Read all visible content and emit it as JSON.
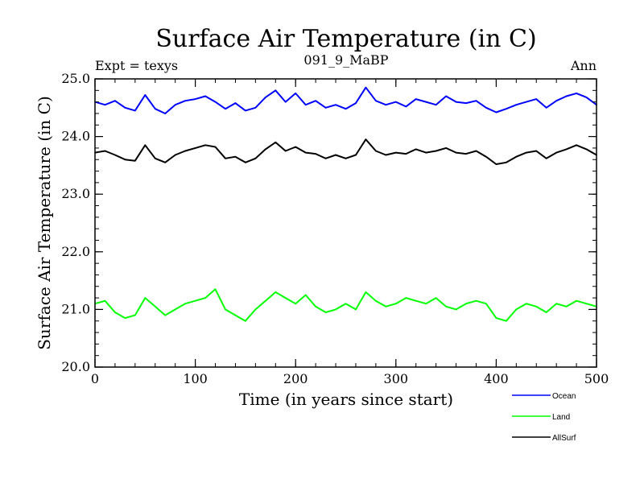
{
  "chart_data": {
    "type": "line",
    "title": "Surface Air Temperature (in C)",
    "subtitle": "091_9_MaBP",
    "top_left_label": "Expt = texys",
    "top_right_label": "Ann",
    "xlabel": "Time (in years since start)",
    "ylabel": "Surface Air Temperature (in C)",
    "xlim": [
      0,
      500
    ],
    "ylim": [
      20.0,
      25.0
    ],
    "x_ticks": [
      0,
      100,
      200,
      300,
      400,
      500
    ],
    "x_tick_labels": [
      "0",
      "100",
      "200",
      "300",
      "400",
      "500"
    ],
    "y_ticks": [
      20.0,
      21.0,
      22.0,
      23.0,
      24.0,
      25.0
    ],
    "y_tick_labels": [
      "20.0",
      "21.0",
      "22.0",
      "23.0",
      "24.0",
      "25.0"
    ],
    "legend_position": "bottom-right",
    "series": [
      {
        "name": "Ocean",
        "color": "#0000ff",
        "x": [
          0,
          10,
          20,
          30,
          40,
          50,
          60,
          70,
          80,
          90,
          100,
          110,
          120,
          130,
          140,
          150,
          160,
          170,
          180,
          190,
          200,
          210,
          220,
          230,
          240,
          250,
          260,
          270,
          280,
          290,
          300,
          310,
          320,
          330,
          340,
          350,
          360,
          370,
          380,
          390,
          400,
          410,
          420,
          430,
          440,
          450,
          460,
          470,
          480,
          490,
          500
        ],
        "values": [
          24.6,
          24.55,
          24.62,
          24.5,
          24.45,
          24.72,
          24.48,
          24.4,
          24.55,
          24.62,
          24.65,
          24.7,
          24.6,
          24.48,
          24.58,
          24.45,
          24.5,
          24.68,
          24.8,
          24.6,
          24.75,
          24.55,
          24.62,
          24.5,
          24.55,
          24.48,
          24.58,
          24.85,
          24.62,
          24.55,
          24.6,
          24.52,
          24.65,
          24.6,
          24.55,
          24.7,
          24.6,
          24.58,
          24.62,
          24.5,
          24.42,
          24.48,
          24.55,
          24.6,
          24.65,
          24.5,
          24.62,
          24.7,
          24.75,
          24.68,
          24.55
        ]
      },
      {
        "name": "Land",
        "color": "#00ff00",
        "x": [
          0,
          10,
          20,
          30,
          40,
          50,
          60,
          70,
          80,
          90,
          100,
          110,
          120,
          130,
          140,
          150,
          160,
          170,
          180,
          190,
          200,
          210,
          220,
          230,
          240,
          250,
          260,
          270,
          280,
          290,
          300,
          310,
          320,
          330,
          340,
          350,
          360,
          370,
          380,
          390,
          400,
          410,
          420,
          430,
          440,
          450,
          460,
          470,
          480,
          490,
          500
        ],
        "values": [
          21.1,
          21.15,
          20.95,
          20.85,
          20.9,
          21.2,
          21.05,
          20.9,
          21.0,
          21.1,
          21.15,
          21.2,
          21.35,
          21.0,
          20.9,
          20.8,
          21.0,
          21.15,
          21.3,
          21.2,
          21.1,
          21.25,
          21.05,
          20.95,
          21.0,
          21.1,
          21.0,
          21.3,
          21.15,
          21.05,
          21.1,
          21.2,
          21.15,
          21.1,
          21.2,
          21.05,
          21.0,
          21.1,
          21.15,
          21.1,
          20.85,
          20.8,
          21.0,
          21.1,
          21.05,
          20.95,
          21.1,
          21.05,
          21.15,
          21.1,
          21.05
        ]
      },
      {
        "name": "AllSurf",
        "color": "#000000",
        "x": [
          0,
          10,
          20,
          30,
          40,
          50,
          60,
          70,
          80,
          90,
          100,
          110,
          120,
          130,
          140,
          150,
          160,
          170,
          180,
          190,
          200,
          210,
          220,
          230,
          240,
          250,
          260,
          270,
          280,
          290,
          300,
          310,
          320,
          330,
          340,
          350,
          360,
          370,
          380,
          390,
          400,
          410,
          420,
          430,
          440,
          450,
          460,
          470,
          480,
          490,
          500
        ],
        "values": [
          23.72,
          23.75,
          23.68,
          23.6,
          23.58,
          23.85,
          23.62,
          23.55,
          23.68,
          23.75,
          23.8,
          23.85,
          23.82,
          23.62,
          23.65,
          23.55,
          23.62,
          23.78,
          23.9,
          23.75,
          23.82,
          23.72,
          23.7,
          23.62,
          23.68,
          23.62,
          23.68,
          23.95,
          23.75,
          23.68,
          23.72,
          23.7,
          23.78,
          23.72,
          23.75,
          23.8,
          23.72,
          23.7,
          23.75,
          23.65,
          23.52,
          23.55,
          23.65,
          23.72,
          23.75,
          23.62,
          23.72,
          23.78,
          23.85,
          23.78,
          23.68
        ]
      }
    ]
  }
}
